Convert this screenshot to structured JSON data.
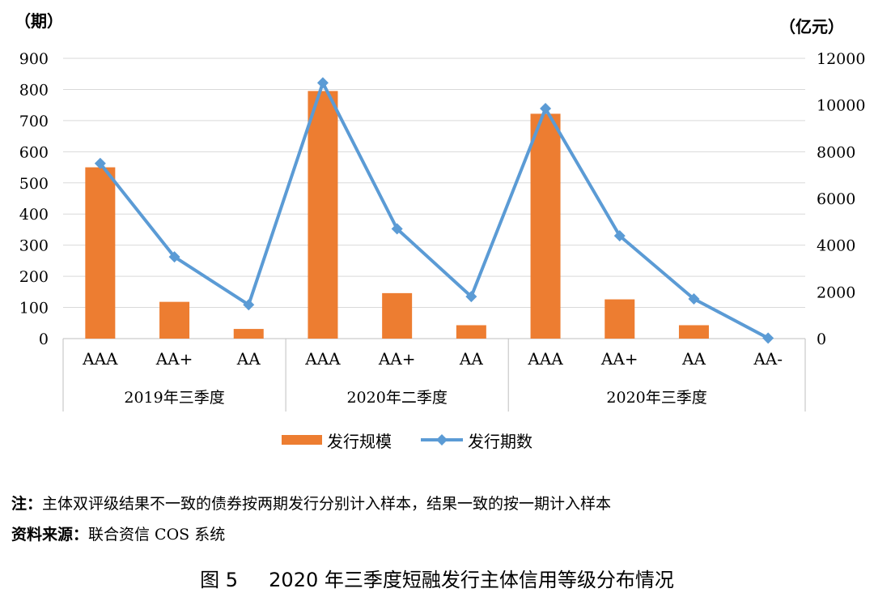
{
  "chart_data": {
    "type": "bar+line",
    "left_axis_unit": "（期）",
    "right_axis_unit": "（亿元）",
    "left_ticks": [
      "0",
      "100",
      "200",
      "300",
      "400",
      "500",
      "600",
      "700",
      "800",
      "900"
    ],
    "right_ticks": [
      "0",
      "2000",
      "4000",
      "6000",
      "8000",
      "10000",
      "12000"
    ],
    "ylim_left": [
      0,
      900
    ],
    "ylim_right": [
      0,
      12000
    ],
    "groups": [
      {
        "label": "2019年三季度",
        "categories": [
          "AAA",
          "AA+",
          "AA"
        ]
      },
      {
        "label": "2020年二季度",
        "categories": [
          "AAA",
          "AA+",
          "AA"
        ]
      },
      {
        "label": "2020年三季度",
        "categories": [
          "AAA",
          "AA+",
          "AA",
          "AA-"
        ]
      }
    ],
    "series": [
      {
        "name": "发行规模",
        "type": "bar",
        "axis": "left",
        "color": "#ED7D31",
        "values": [
          550,
          118,
          31,
          795,
          146,
          43,
          722,
          126,
          43,
          null
        ]
      },
      {
        "name": "发行期数",
        "type": "line",
        "axis": "right",
        "color": "#5B9BD5",
        "values": [
          7500,
          3500,
          1450,
          10950,
          4700,
          1800,
          9850,
          4400,
          1700,
          20
        ]
      }
    ],
    "legend_position": "bottom"
  },
  "notes": {
    "note_label": "注：",
    "note_text": "主体双评级结果不一致的债券按两期发行分别计入样本，结果一致的按一期计入样本",
    "source_label": "资料来源：",
    "source_text": "联合资信 COS 系统"
  },
  "caption": "图 5     2020 年三季度短融发行主体信用等级分布情况"
}
